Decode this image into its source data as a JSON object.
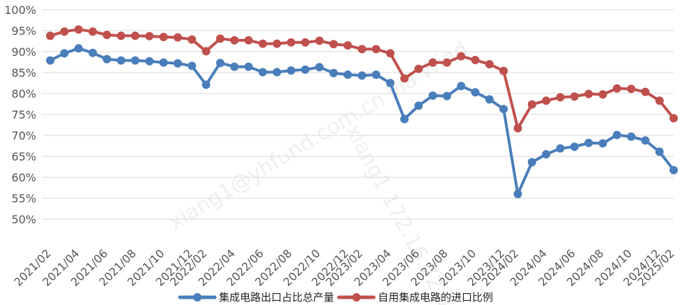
{
  "chart_data": {
    "type": "line",
    "title": "",
    "xlabel": "",
    "ylabel": "",
    "ylim": [
      50,
      100
    ],
    "yticks": [
      "50%",
      "55%",
      "60%",
      "65%",
      "70%",
      "75%",
      "80%",
      "85%",
      "90%",
      "95%",
      "100%"
    ],
    "grid": true,
    "legend_position": "bottom-center",
    "x": [
      "2021/02",
      "2021/03",
      "2021/04",
      "2021/05",
      "2021/06",
      "2021/07",
      "2021/08",
      "2021/09",
      "2021/10",
      "2021/11",
      "2021/12",
      "2022/02",
      "2022/03",
      "2022/04",
      "2022/05",
      "2022/06",
      "2022/07",
      "2022/08",
      "2022/09",
      "2022/10",
      "2022/11",
      "2022/12",
      "2023/02",
      "2023/03",
      "2023/04",
      "2023/05",
      "2023/06",
      "2023/07",
      "2023/08",
      "2023/09",
      "2023/10",
      "2023/11",
      "2023/12",
      "2024/02",
      "2024/03",
      "2024/04",
      "2024/05",
      "2024/06",
      "2024/07",
      "2024/08",
      "2024/09",
      "2024/10",
      "2024/11",
      "2024/12",
      "2025/02"
    ],
    "xticks": [
      "2021/02",
      "2021/04",
      "2021/06",
      "2021/08",
      "2021/10",
      "2021/12",
      "2022/02",
      "2022/04",
      "2022/06",
      "2022/08",
      "2022/10",
      "2022/12",
      "2023/02",
      "2023/04",
      "2023/06",
      "2023/08",
      "2023/10",
      "2023/12",
      "2024/02",
      "2024/04",
      "2024/06",
      "2024/08",
      "2024/10",
      "2024/12",
      "2025/02"
    ],
    "series": [
      {
        "name": "集成电路出口占比总产量",
        "color": "#4a7ebb",
        "values": [
          87.9,
          89.6,
          90.8,
          89.7,
          88.2,
          87.9,
          87.9,
          87.7,
          87.4,
          87.2,
          86.6,
          82.1,
          87.3,
          86.4,
          86.4,
          85.1,
          85.1,
          85.5,
          85.7,
          86.3,
          84.9,
          84.5,
          84.3,
          84.5,
          82.5,
          73.9,
          77.1,
          79.5,
          79.4,
          81.8,
          80.3,
          78.6,
          76.3,
          56.0,
          63.6,
          65.5,
          66.9,
          67.3,
          68.2,
          68.1,
          70.1,
          69.7,
          68.8,
          66.1,
          61.7
        ]
      },
      {
        "name": "自用集成电路的进口比例",
        "color": "#c0504d",
        "values": [
          93.8,
          94.8,
          95.3,
          94.8,
          94.0,
          93.8,
          93.8,
          93.7,
          93.5,
          93.4,
          92.9,
          90.1,
          93.1,
          92.7,
          92.7,
          91.9,
          91.9,
          92.2,
          92.2,
          92.6,
          91.8,
          91.5,
          90.6,
          90.6,
          89.6,
          83.6,
          85.9,
          87.4,
          87.4,
          88.9,
          88.0,
          87.0,
          85.4,
          71.7,
          77.4,
          78.3,
          79.1,
          79.3,
          79.9,
          79.8,
          81.2,
          81.1,
          80.4,
          78.3,
          74.1
        ]
      }
    ],
    "watermarks": [
      "xiang1@yhfund.com.cn via Wind",
      "xiang1 172.16.72.5"
    ]
  }
}
